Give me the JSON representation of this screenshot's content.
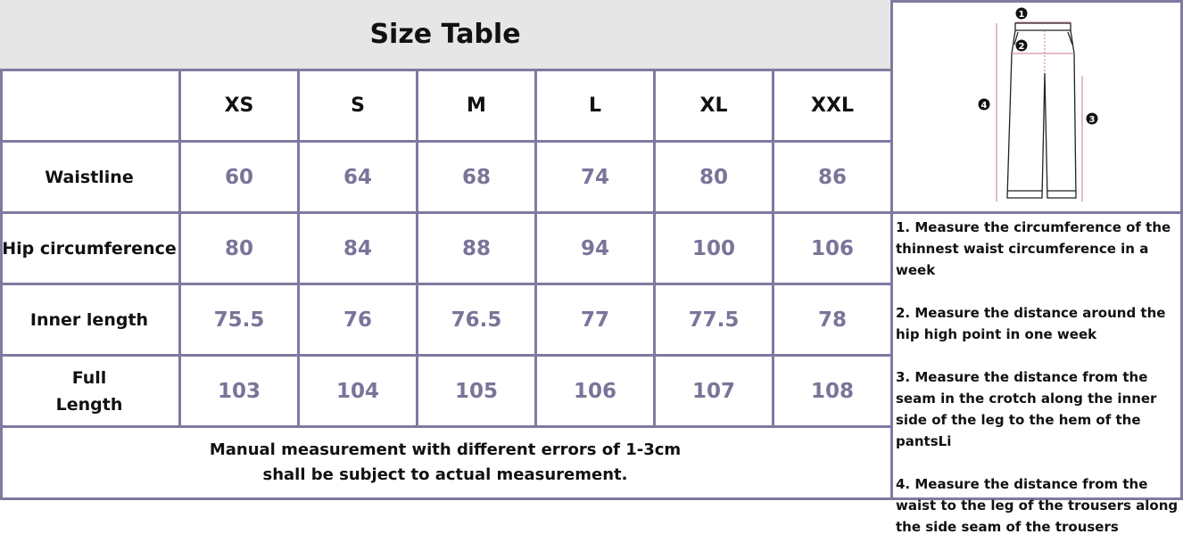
{
  "title": "Size Table",
  "sizes": [
    "XS",
    "S",
    "M",
    "L",
    "XL",
    "XXL"
  ],
  "rows": [
    {
      "label": "Waistline",
      "values": [
        "60",
        "64",
        "68",
        "74",
        "80",
        "86"
      ]
    },
    {
      "label": "Hip circumference",
      "values": [
        "80",
        "84",
        "88",
        "94",
        "100",
        "106"
      ]
    },
    {
      "label": "Inner length",
      "values": [
        "75.5",
        "76",
        "76.5",
        "77",
        "77.5",
        "78"
      ]
    },
    {
      "label": "Full Length",
      "values": [
        "103",
        "104",
        "105",
        "106",
        "107",
        "108"
      ]
    }
  ],
  "footer": [
    "Manual measurement with different errors of 1-3cm",
    "shall be subject to actual measurement."
  ],
  "diagram": {
    "markers": [
      "1",
      "2",
      "3",
      "4"
    ]
  },
  "notes": [
    "1. Measure the circumference of the thinnest waist circumference in a week",
    "2. Measure the distance around the hip high point in one week",
    "3. Measure the distance from the seam in the crotch along the inner side of the leg to the hem of the pantsLi",
    "4. Measure the distance from the waist to the leg of the trousers along the side seam of the trousers"
  ],
  "colors": {
    "border": "#8279a1",
    "value": "#7b7499",
    "title_bg": "#e6e6e6",
    "measure_line": "#c77a8e"
  }
}
